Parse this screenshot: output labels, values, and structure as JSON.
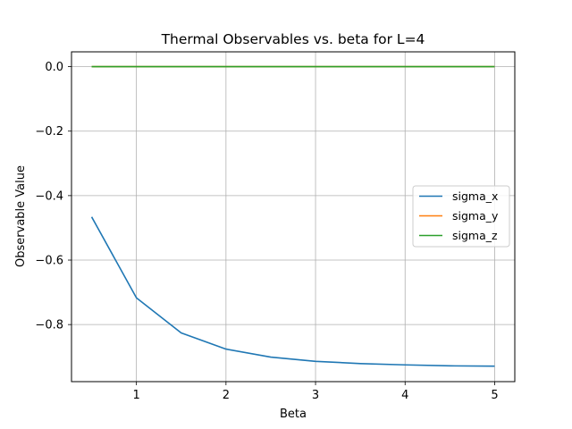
{
  "chart_data": {
    "type": "line",
    "title": "Thermal Observables vs. beta for L=4",
    "xlabel": "Beta",
    "ylabel": "Observable Value",
    "xlim": [
      0.275,
      5.225
    ],
    "ylim": [
      -0.977,
      0.046
    ],
    "xticks": [
      1,
      2,
      3,
      4,
      5
    ],
    "xtick_labels": [
      "1",
      "2",
      "3",
      "4",
      "5"
    ],
    "yticks": [
      0.0,
      -0.2,
      -0.4,
      -0.6,
      -0.8
    ],
    "ytick_labels": [
      "0.0",
      "−0.2",
      "−0.4",
      "−0.6",
      "−0.8"
    ],
    "grid": true,
    "legend_position": "center-right",
    "x": [
      0.5,
      1.0,
      1.5,
      2.0,
      2.5,
      3.0,
      3.5,
      4.0,
      4.5,
      5.0
    ],
    "series": [
      {
        "name": "sigma_x",
        "color": "#1f77b4",
        "values": [
          -0.466,
          -0.717,
          -0.826,
          -0.876,
          -0.901,
          -0.914,
          -0.921,
          -0.925,
          -0.928,
          -0.929
        ]
      },
      {
        "name": "sigma_y",
        "color": "#ff7f0e",
        "values": [
          0,
          0,
          0,
          0,
          0,
          0,
          0,
          0,
          0,
          0
        ]
      },
      {
        "name": "sigma_z",
        "color": "#2ca02c",
        "values": [
          0,
          0,
          0,
          0,
          0,
          0,
          0,
          0,
          0,
          0
        ]
      }
    ]
  }
}
